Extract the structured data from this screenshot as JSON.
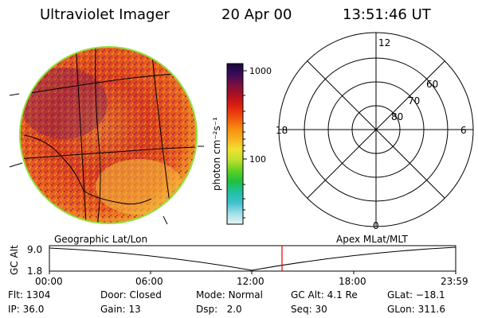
{
  "header": {
    "title": "Ultraviolet Imager",
    "date": "20 Apr 00",
    "time": "13:51:46 UT"
  },
  "colorbar": {
    "label": "photon cm⁻²s⁻¹",
    "ticks": [
      "1000",
      "100"
    ],
    "colors": [
      "#1a0a3a",
      "#3a0a5a",
      "#7a1040",
      "#b01020",
      "#e02010",
      "#f05010",
      "#f58a10",
      "#f8b020",
      "#f0e030",
      "#c0e030",
      "#60d020",
      "#20c040",
      "#20c0a0",
      "#40c0d0",
      "#a0e0e8",
      "#e8f4f4"
    ]
  },
  "polar": {
    "labels": {
      "top": "12",
      "bottom": "0",
      "left": "18",
      "right": "6"
    },
    "lat_labels": [
      "60",
      "70",
      "80"
    ]
  },
  "altitude_plot": {
    "ylabel": "GC Alt",
    "yticks": [
      "9.0",
      "1.8"
    ],
    "left_title": "Geographic Lat/Lon",
    "right_title": "Apex MLat/MLT",
    "xticks": [
      "00:00",
      "06:00",
      "12:00",
      "18:00",
      "23:59"
    ],
    "marker_color": "#e00000"
  },
  "status": {
    "flt_label": "Flt:",
    "flt": "1304",
    "ip_label": "IP:",
    "ip": "36.0",
    "door_label": "Door:",
    "door": "Closed",
    "gain_label": "Gain:",
    "gain": "13",
    "mode_label": "Mode:",
    "mode": "Normal",
    "dsp_label": "Dsp:",
    "dsp": "2.0",
    "gcalt_label": "GC Alt:",
    "gcalt": "4.1 Re",
    "seq_label": "Seq:",
    "seq": "30",
    "glat_label": "GLat:",
    "glat": "−18.1",
    "glon_label": "GLon:",
    "glon": "311.6"
  }
}
